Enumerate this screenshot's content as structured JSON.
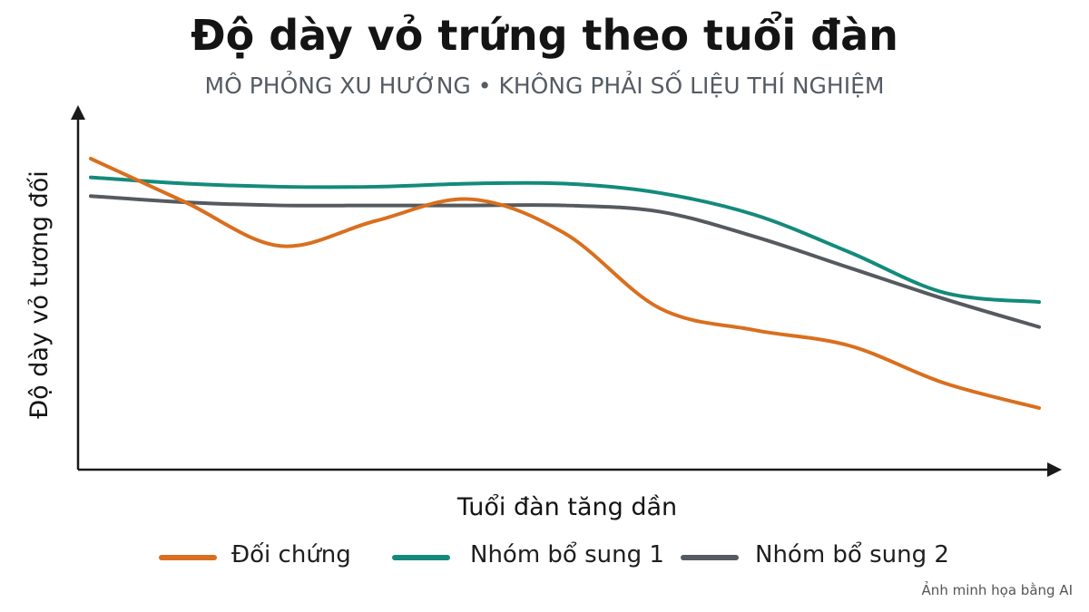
{
  "chart_data": {
    "type": "line",
    "title": "Độ dày vỏ trứng theo tuổi đàn",
    "subtitle": "MÔ PHỎNG XU HƯỚNG • KHÔNG PHẢI SỐ LIỆU THÍ NGHIỆM",
    "xlabel": "Tuổi đàn tăng dần",
    "ylabel": "Độ dày vỏ tương đối",
    "x": [
      0,
      10,
      20,
      30,
      40,
      50,
      60,
      70,
      80,
      90,
      100
    ],
    "xlim": [
      0,
      100
    ],
    "ylim": [
      0,
      100
    ],
    "grid": false,
    "legend_position": "bottom",
    "series": [
      {
        "name": "Đối chứng",
        "color": "#d96f1e",
        "values": [
          100,
          86,
          72,
          80,
          87,
          76,
          52,
          45,
          40,
          28,
          20
        ]
      },
      {
        "name": "Nhóm bổ sung 1",
        "color": "#138a7c",
        "values": [
          94,
          92,
          91,
          91,
          92,
          92,
          89,
          82,
          70,
          57,
          54
        ]
      },
      {
        "name": "Nhóm bổ sung 2",
        "color": "#555a60",
        "values": [
          88,
          86,
          85,
          85,
          85,
          85,
          83,
          75,
          65,
          55,
          46
        ]
      }
    ]
  },
  "footnote": "Ảnh minh họa bằng AI"
}
